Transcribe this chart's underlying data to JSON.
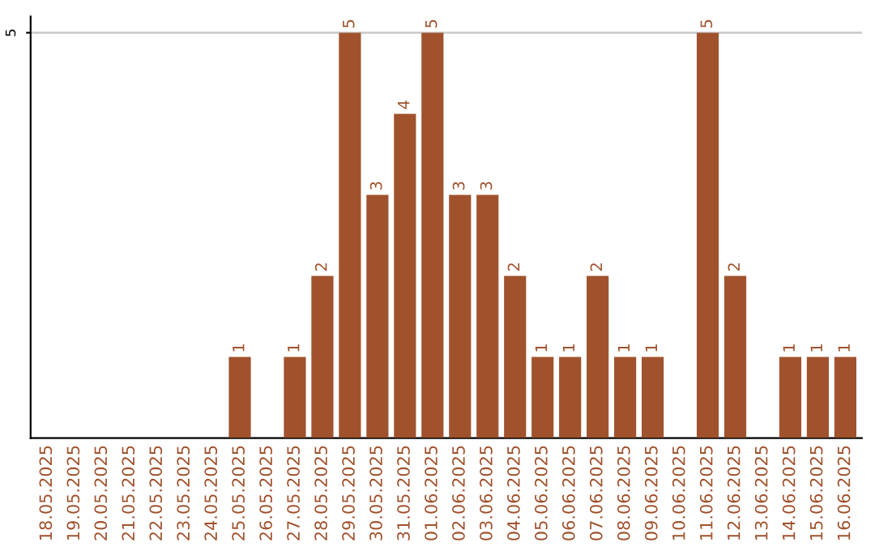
{
  "chart_data": {
    "type": "bar",
    "categories": [
      "18.05.2025",
      "19.05.2025",
      "20.05.2025",
      "21.05.2025",
      "22.05.2025",
      "23.05.2025",
      "24.05.2025",
      "25.05.2025",
      "26.05.2025",
      "27.05.2025",
      "28.05.2025",
      "29.05.2025",
      "30.05.2025",
      "31.05.2025",
      "01.06.2025",
      "02.06.2025",
      "03.06.2025",
      "04.06.2025",
      "05.06.2025",
      "06.06.2025",
      "07.06.2025",
      "08.06.2025",
      "09.06.2025",
      "10.06.2025",
      "11.06.2025",
      "12.06.2025",
      "13.06.2025",
      "14.06.2025",
      "15.06.2025",
      "16.06.2025"
    ],
    "values": [
      0,
      0,
      0,
      0,
      0,
      0,
      0,
      1,
      0,
      1,
      2,
      5,
      3,
      4,
      5,
      3,
      3,
      2,
      1,
      1,
      2,
      1,
      1,
      0,
      5,
      2,
      0,
      1,
      1,
      1
    ],
    "value_labels": [
      null,
      null,
      null,
      null,
      null,
      null,
      null,
      "1",
      null,
      "1",
      "2",
      "5",
      "3",
      "4",
      "5",
      "3",
      "3",
      "2",
      "1",
      "1",
      "2",
      "1",
      "1",
      null,
      "5",
      "2",
      null,
      "1",
      "1",
      "1"
    ],
    "color": "#a0522d",
    "ylim": [
      0,
      5.2
    ],
    "yticks": [
      5
    ],
    "grid": "y"
  }
}
